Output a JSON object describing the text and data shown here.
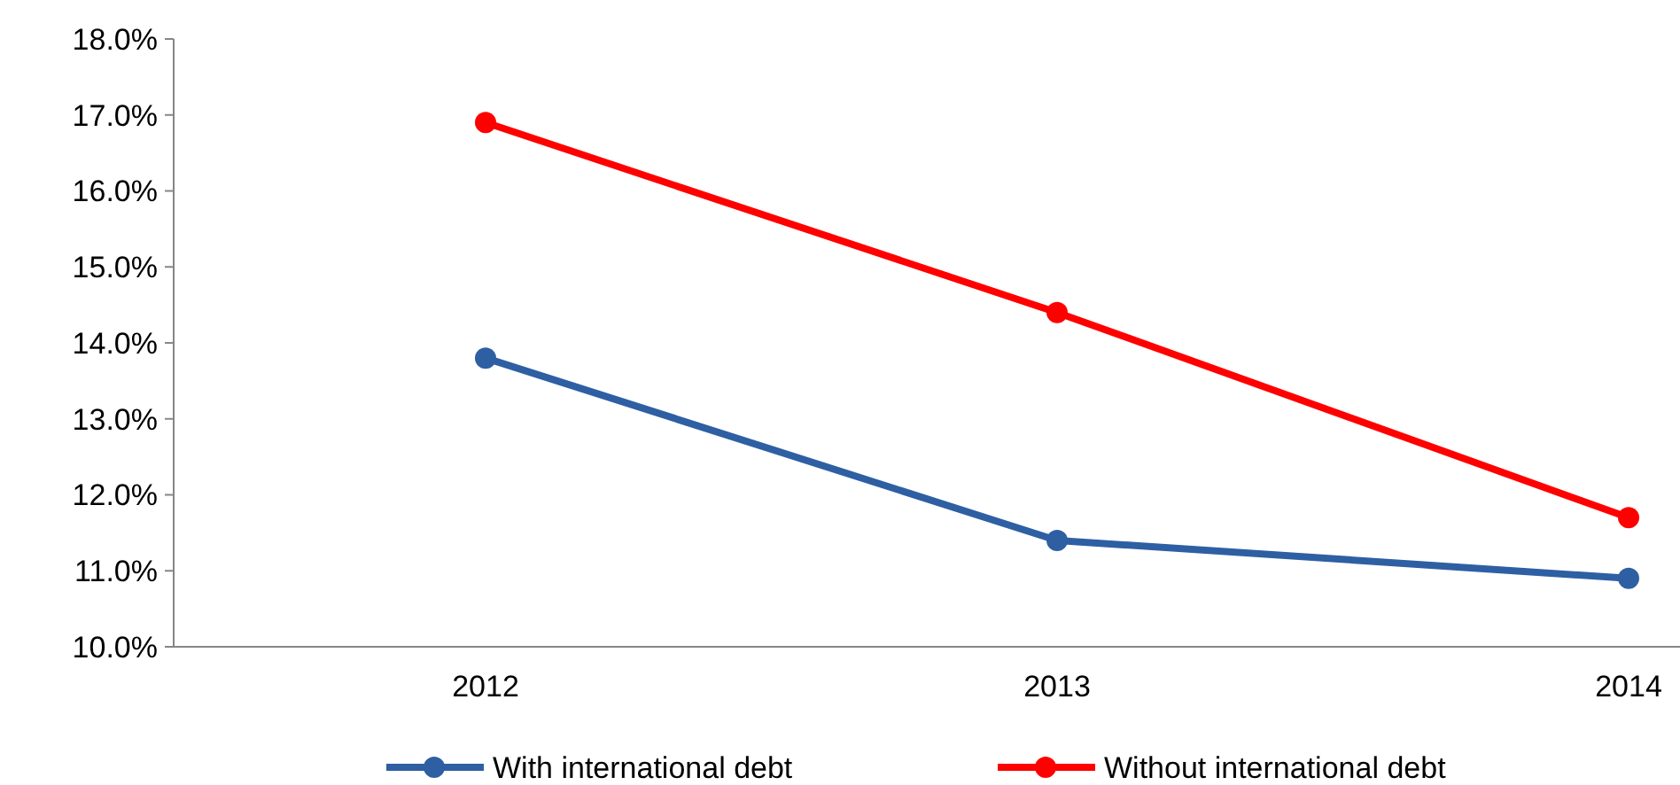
{
  "chart_data": {
    "type": "line",
    "categories": [
      "2012",
      "2013",
      "2014"
    ],
    "series": [
      {
        "name": "With international debt",
        "color": "#2e5fa3",
        "values": [
          13.8,
          11.4,
          10.9
        ]
      },
      {
        "name": "Without international debt",
        "color": "#ff0000",
        "values": [
          16.9,
          14.4,
          11.7
        ]
      }
    ],
    "ylim": [
      10,
      18
    ],
    "yticks": [
      {
        "value": 10,
        "label": "10.0%"
      },
      {
        "value": 11,
        "label": "11.0%"
      },
      {
        "value": 12,
        "label": "12.0%"
      },
      {
        "value": 13,
        "label": "13.0%"
      },
      {
        "value": 14,
        "label": "14.0%"
      },
      {
        "value": 15,
        "label": "15.0%"
      },
      {
        "value": 16,
        "label": "16.0%"
      },
      {
        "value": 17,
        "label": "17.0%"
      },
      {
        "value": 18,
        "label": "18.0%"
      }
    ],
    "grid": false,
    "legend": "bottom",
    "marker": "circle",
    "line_style": "solid"
  }
}
